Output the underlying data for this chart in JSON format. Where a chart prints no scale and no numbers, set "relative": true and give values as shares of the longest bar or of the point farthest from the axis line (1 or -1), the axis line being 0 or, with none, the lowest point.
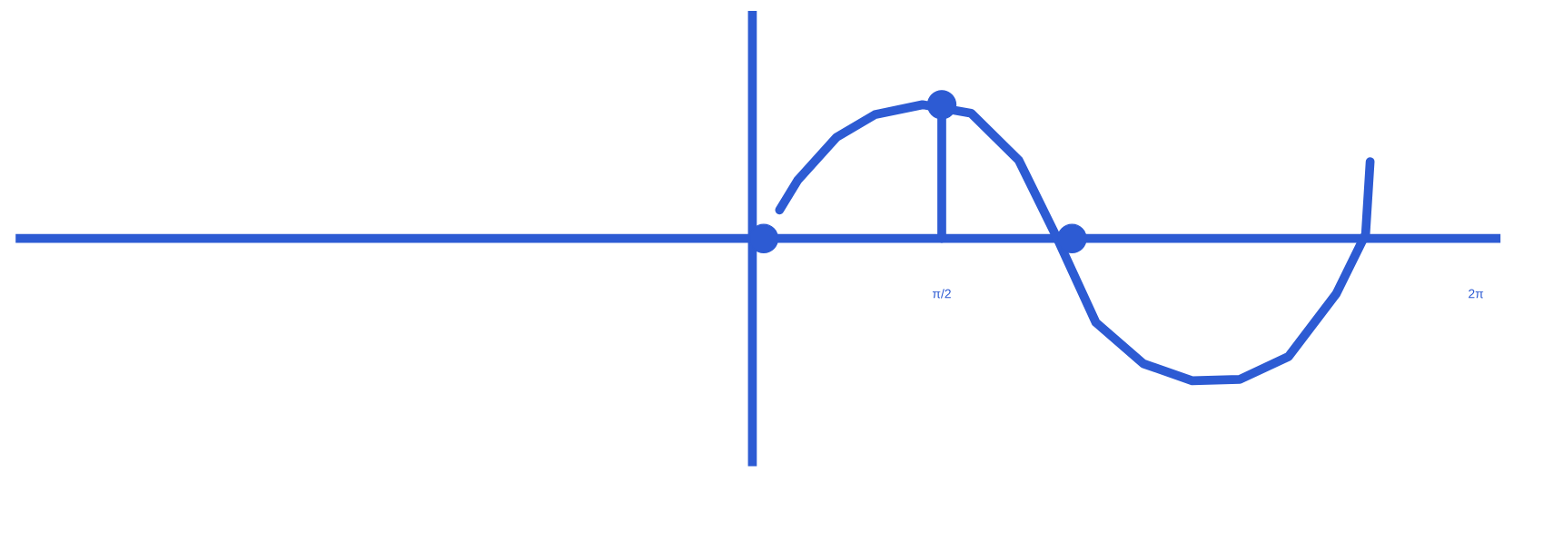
{
  "chart_data": {
    "type": "line",
    "relative": true,
    "xlim": [
      -6.6,
      6.5
    ],
    "ref_lines": [
      {
        "axis": "x",
        "value": -0.1
      },
      {
        "axis": "y",
        "value": 0
      }
    ],
    "xticks": [
      {
        "value": 1.5708,
        "label": "π/2"
      },
      {
        "value": 6.2832,
        "label": "2π"
      }
    ],
    "grid": false,
    "legend": false,
    "marker": "none",
    "line_style": "solid",
    "series": [
      {
        "color": "#2d5bd3",
        "x": [
          0.14,
          0.3,
          0.64,
          0.98,
          1.4,
          1.83,
          2.25,
          2.59,
          2.93,
          3.35,
          3.78,
          4.2,
          4.63,
          5.05,
          5.31,
          5.35
        ],
        "values": [
          0.2,
          0.41,
          0.71,
          0.87,
          0.94,
          0.88,
          0.55,
          0,
          -0.59,
          -0.88,
          -1.0,
          -0.99,
          -0.83,
          -0.39,
          0.03,
          0.54
        ]
      },
      {
        "color": "#2d5bd3",
        "x": [
          1.5708,
          1.5708
        ],
        "values": [
          0.94,
          0
        ]
      },
      {
        "type": "scatter",
        "color": "#2d5bd3",
        "marker": "circle",
        "x": [
          0,
          1.5708,
          2.72
        ],
        "values": [
          0,
          0.94,
          0
        ]
      }
    ]
  }
}
